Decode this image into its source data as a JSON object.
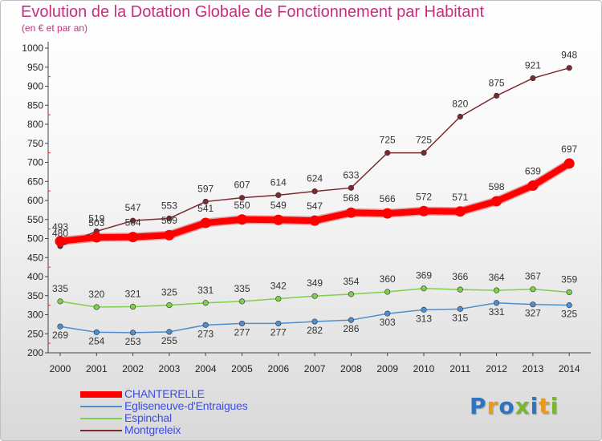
{
  "title": "Evolution de la Dotation Globale de Fonctionnement par Habitant",
  "subtitle": "(en € et par an)",
  "logo": {
    "text": "Proxiti",
    "colors": [
      "#2f74c0",
      "#e89a1c",
      "#2f74c0",
      "#79b72f",
      "#2f74c0",
      "#e89a1c",
      "#79b72f"
    ]
  },
  "chart_data": {
    "type": "line",
    "title": "Evolution de la Dotation Globale de Fonctionnement par Habitant",
    "subtitle": "(en € et par an)",
    "x": [
      "2000",
      "2001",
      "2002",
      "2003",
      "2004",
      "2005",
      "2006",
      "2007",
      "2008",
      "2009",
      "2010",
      "2011",
      "2012",
      "2013",
      "2014"
    ],
    "ylim": [
      200,
      1000
    ],
    "yticks": [
      200,
      250,
      300,
      350,
      400,
      450,
      500,
      550,
      600,
      650,
      700,
      750,
      800,
      850,
      900,
      950,
      1000
    ],
    "grid": false,
    "legend_position": "bottom-left",
    "series": [
      {
        "name": "CHANTERELLE",
        "color": "#ff0000",
        "emphasis": true,
        "values": [
          493,
          503,
          504,
          509,
          541,
          550,
          549,
          547,
          568,
          566,
          572,
          571,
          598,
          639,
          697
        ]
      },
      {
        "name": "Egliseneuve-d'Entraigues",
        "color": "#4f8fcf",
        "emphasis": false,
        "values": [
          269,
          254,
          253,
          255,
          273,
          277,
          277,
          282,
          286,
          303,
          313,
          315,
          331,
          327,
          325
        ]
      },
      {
        "name": "Espinchal",
        "color": "#7ecf4a",
        "emphasis": false,
        "values": [
          335,
          320,
          321,
          325,
          331,
          335,
          342,
          349,
          354,
          360,
          369,
          366,
          364,
          367,
          359
        ]
      },
      {
        "name": "Montgreleix",
        "color": "#7a2a30",
        "emphasis": false,
        "values": [
          480,
          519,
          547,
          553,
          597,
          607,
          614,
          624,
          633,
          725,
          725,
          820,
          875,
          921,
          948
        ]
      }
    ]
  }
}
